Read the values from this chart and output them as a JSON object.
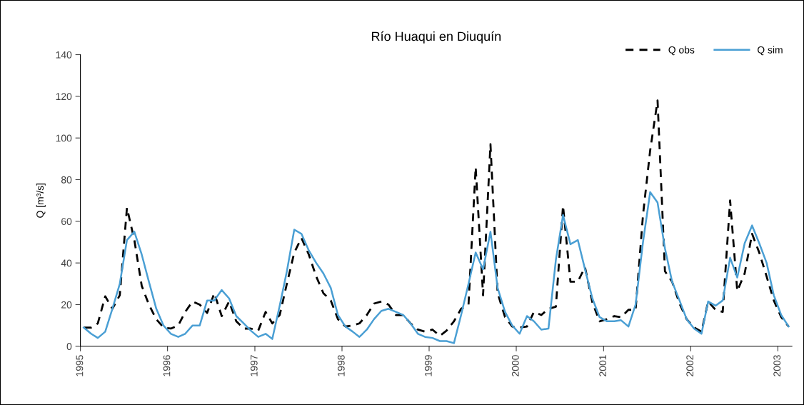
{
  "chart_data": {
    "type": "line",
    "title": "Río Huaqui en Diuquín",
    "ylabel": "Q [m³/s]",
    "x": [
      "1995-01-15",
      "1995-02-15",
      "1995-03-15",
      "1995-04-15",
      "1995-05-15",
      "1995-06-15",
      "1995-07-15",
      "1995-08-15",
      "1995-09-15",
      "1995-10-15",
      "1995-11-15",
      "1995-12-15",
      "1996-01-15",
      "1996-02-15",
      "1996-03-15",
      "1996-04-15",
      "1996-05-15",
      "1996-06-15",
      "1996-07-15",
      "1996-08-15",
      "1996-09-15",
      "1996-10-15",
      "1996-11-15",
      "1996-12-15",
      "1997-01-15",
      "1997-02-15",
      "1997-03-15",
      "1997-04-15",
      "1997-05-15",
      "1997-06-15",
      "1997-07-15",
      "1997-08-15",
      "1997-09-15",
      "1997-10-15",
      "1997-11-15",
      "1997-12-15",
      "1998-01-15",
      "1998-02-15",
      "1998-03-15",
      "1998-04-15",
      "1998-05-15",
      "1998-06-15",
      "1998-07-15",
      "1998-08-15",
      "1998-09-15",
      "1998-10-15",
      "1998-11-15",
      "1998-12-15",
      "1999-01-15",
      "1999-02-15",
      "1999-03-15",
      "1999-04-15",
      "1999-05-15",
      "1999-06-15",
      "1999-07-15",
      "1999-08-15",
      "1999-09-15",
      "1999-10-15",
      "1999-11-15",
      "1999-12-15",
      "2000-01-15",
      "2000-02-15",
      "2000-03-15",
      "2000-04-15",
      "2000-05-15",
      "2000-06-15",
      "2000-07-15",
      "2000-08-15",
      "2000-09-15",
      "2000-10-15",
      "2000-11-15",
      "2000-12-15",
      "2001-01-15",
      "2001-02-15",
      "2001-03-15",
      "2001-04-15",
      "2001-05-15",
      "2001-06-15",
      "2001-07-15",
      "2001-08-15",
      "2001-09-15",
      "2001-10-15",
      "2001-11-15",
      "2001-12-15",
      "2002-01-15",
      "2002-02-15",
      "2002-03-15",
      "2002-04-15",
      "2002-05-15",
      "2002-06-15",
      "2002-07-15",
      "2002-08-15",
      "2002-09-15",
      "2002-10-15",
      "2002-11-15",
      "2002-12-15",
      "2003-01-15",
      "2003-02-15"
    ],
    "series": [
      {
        "name": "Q obs",
        "color": "#000000",
        "line_style": "dashed",
        "values": [
          9,
          9,
          11,
          24,
          18,
          24.5,
          66.5,
          51,
          29,
          20,
          13,
          9,
          8.5,
          10,
          16.5,
          21.5,
          20,
          16,
          25.5,
          14.5,
          21.5,
          12,
          8.5,
          8.5,
          7.5,
          16.5,
          11,
          15,
          30,
          45,
          52,
          44,
          33.5,
          25.5,
          22,
          13,
          9.5,
          10,
          11,
          15,
          20.5,
          21.5,
          20,
          15,
          15,
          11,
          8,
          7,
          8,
          5,
          7.5,
          12,
          18,
          20,
          86,
          24.5,
          97,
          25.5,
          14,
          9.5,
          9,
          9.5,
          16.5,
          15,
          18,
          19,
          67.5,
          31,
          31,
          38,
          21,
          12,
          13,
          14.5,
          14,
          17.5,
          17.5,
          63,
          94,
          118,
          36,
          31,
          20.5,
          13,
          9,
          7,
          21.5,
          17.5,
          16.5,
          70,
          26.5,
          35,
          54,
          45,
          33.5,
          22,
          14,
          9.5
        ]
      },
      {
        "name": "Q sim",
        "color": "#4a9fd4",
        "line_style": "solid",
        "values": [
          9,
          6,
          4,
          7,
          18,
          30,
          51,
          55,
          44,
          31,
          18,
          10,
          6,
          4.5,
          6,
          10,
          10,
          22,
          22,
          27,
          23,
          14.5,
          11,
          7.5,
          4.5,
          6,
          3.5,
          19.5,
          36,
          56,
          54,
          46,
          40,
          35,
          28,
          15,
          9.5,
          7,
          4.5,
          8,
          13,
          17,
          18,
          16.5,
          15,
          11,
          6,
          4.5,
          4,
          2.5,
          2.5,
          1.5,
          15,
          30,
          45,
          37,
          55,
          28,
          16.5,
          10,
          6,
          14.5,
          12,
          8,
          8.5,
          41.5,
          63,
          49,
          51,
          37,
          23,
          14,
          12,
          12,
          12.5,
          9.5,
          20,
          50,
          74,
          69,
          47,
          31,
          22,
          13,
          8.5,
          6,
          21.5,
          19.5,
          22,
          42.5,
          33,
          49.5,
          58,
          49.5,
          40,
          24.5,
          15,
          9.5
        ]
      }
    ],
    "xlim": [
      "1995-01-01",
      "2003-03-01"
    ],
    "xticks": [
      "1995",
      "1996",
      "1997",
      "1998",
      "1999",
      "2000",
      "2001",
      "2002",
      "2003"
    ],
    "ylim": [
      0,
      140
    ],
    "yticks": [
      0,
      20,
      40,
      60,
      80,
      100,
      120,
      140
    ],
    "grid": false,
    "legend": "top right",
    "marker": "none"
  }
}
